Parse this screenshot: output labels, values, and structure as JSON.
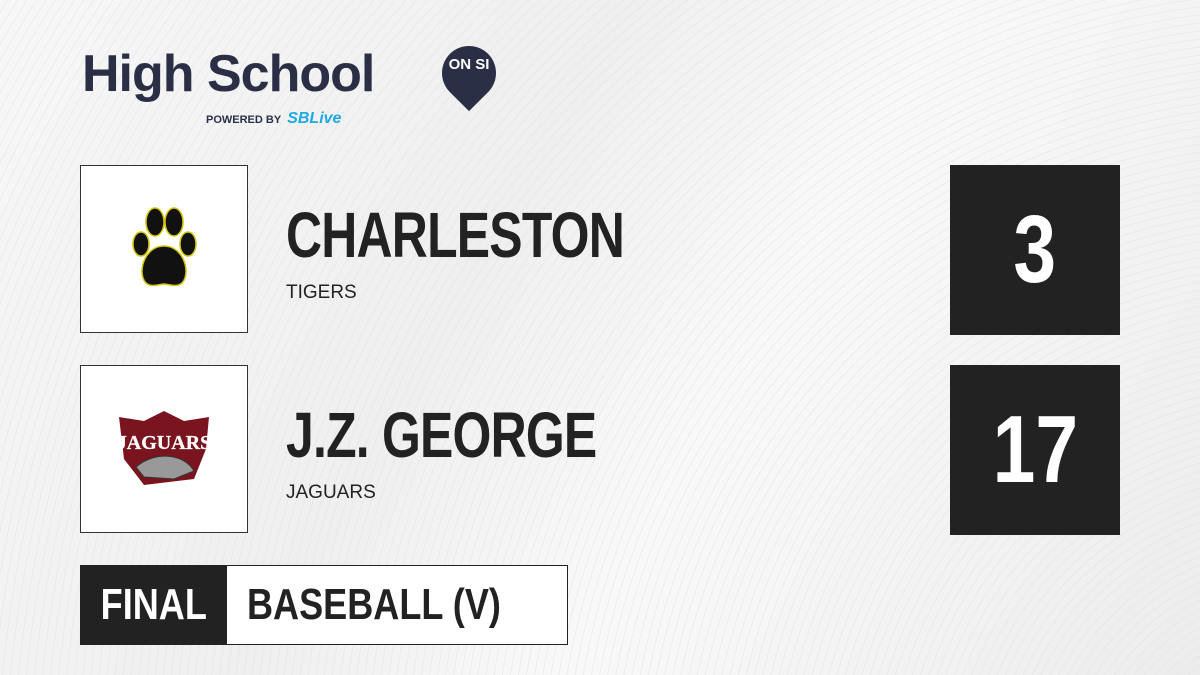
{
  "brand": {
    "title": "High School",
    "badge": "ON SI",
    "powered_by": "POWERED BY",
    "partner": "SBLive",
    "navy": "#2b2f45",
    "partner_color": "#1fa9e1"
  },
  "teams": [
    {
      "name": "CHARLESTON",
      "mascot": "TIGERS",
      "score": "3",
      "logo": "paw-print-icon"
    },
    {
      "name": "J.Z. GEORGE",
      "mascot": "JAGUARS",
      "score": "17",
      "logo_text": "JAGUARS"
    }
  ],
  "game": {
    "status": "FINAL",
    "sport": "BASEBALL (V)"
  }
}
